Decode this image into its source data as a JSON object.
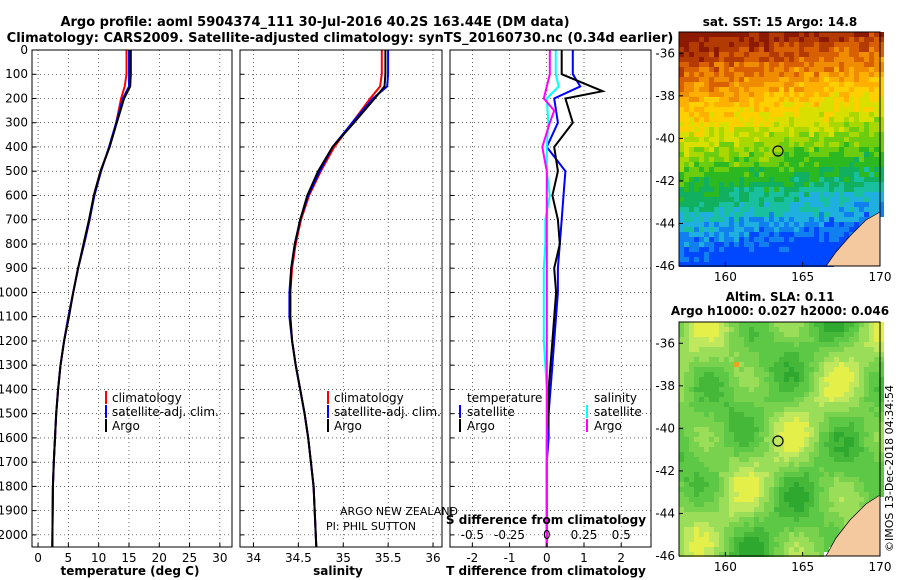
{
  "header": {
    "title_line1": "Argo profile: aoml 5904374_111 30-Jul-2016 40.2S 163.44E (DM data)",
    "title_line2": "Climatology: CARS2009. Satellite-adjusted climatology: synTS_20160730.nc (0.34d earlier)"
  },
  "colors": {
    "climatology": "#ff0000",
    "satellite": "#0000ff",
    "argo": "#000000",
    "sat_salinity": "#00ffff",
    "argo_salinity": "#ff00ff"
  },
  "depth_ticks": [
    0,
    100,
    200,
    300,
    400,
    500,
    600,
    700,
    800,
    900,
    1000,
    1100,
    1200,
    1300,
    1400,
    1500,
    1600,
    1700,
    1800,
    1900,
    2000
  ],
  "panels": {
    "temperature": {
      "xlabel": "temperature (deg C)",
      "xticks": [
        "0",
        "5",
        "10",
        "15",
        "20",
        "25",
        "30"
      ],
      "legend": [
        "climatology",
        "satellite-adj. clim.",
        "Argo"
      ]
    },
    "salinity": {
      "xlabel": "salinity",
      "xticks": [
        "34",
        "34.5",
        "35",
        "35.5",
        "36"
      ],
      "legend": [
        "climatology",
        "satellite-adj. clim.",
        "Argo"
      ],
      "note1": "ARGO NEW ZEALAND",
      "note2": "PI: PHIL SUTTON"
    },
    "difference": {
      "xlabel": "T difference from climatology",
      "xticks": [
        "-2",
        "-1",
        "0",
        "1",
        "2"
      ],
      "s_title": "S difference from climatology",
      "s_ticks": [
        "-0.5",
        "-0.25",
        "0",
        "0.25",
        "0.5"
      ],
      "legend_temperature_title": "temperature",
      "legend_salinity_title": "salinity",
      "legend_satellite": "satellite",
      "legend_argo": "Argo"
    }
  },
  "maps": {
    "sst": {
      "title": "sat. SST: 15 Argo: 14.8",
      "lat_ticks": [
        "-36",
        "-38",
        "-40",
        "-42",
        "-44",
        "-46"
      ],
      "lon_ticks": [
        "160",
        "165",
        "170"
      ]
    },
    "sla": {
      "title1": "Altim. SLA: 0.11",
      "title2": "Argo h1000: 0.027 h2000: 0.046",
      "lat_ticks": [
        "-36",
        "-38",
        "-40",
        "-42",
        "-44",
        "-46"
      ],
      "lon_ticks": [
        "160",
        "165",
        "170"
      ]
    },
    "credit": "©IMOS 13-Dec-2018 04:34:54"
  },
  "chart_data": [
    {
      "type": "line",
      "xlabel": "temperature (deg C)",
      "ylabel": "",
      "xlim": [
        -1,
        32
      ],
      "ylim": [
        2050,
        0
      ],
      "series": [
        {
          "name": "climatology",
          "x": [
            14.6,
            14.6,
            14.3,
            13.7,
            12.9,
            11.8,
            10.3,
            9.2,
            8.5,
            7.6,
            6.6,
            5.8,
            5.0,
            4.3,
            3.7,
            3.3,
            3.0,
            2.8,
            2.6,
            2.45,
            2.35
          ],
          "y": [
            0,
            100,
            150,
            200,
            300,
            400,
            500,
            600,
            700,
            800,
            900,
            1000,
            1100,
            1200,
            1300,
            1400,
            1500,
            1600,
            1700,
            1800,
            2050
          ]
        },
        {
          "name": "satellite-adj. clim.",
          "x": [
            15.0,
            15.0,
            15.0,
            14.0,
            12.9,
            11.7,
            10.4,
            9.3,
            8.5,
            7.6,
            6.6,
            5.8,
            5.0,
            4.3,
            3.7,
            3.3,
            3.0,
            2.8,
            2.6,
            2.45,
            2.35
          ],
          "y": [
            0,
            100,
            150,
            200,
            300,
            400,
            500,
            600,
            700,
            800,
            900,
            1000,
            1100,
            1200,
            1300,
            1400,
            1500,
            1600,
            1700,
            1800,
            2050
          ]
        },
        {
          "name": "Argo",
          "x": [
            15.3,
            15.3,
            15.2,
            14.2,
            13.0,
            11.8,
            10.3,
            9.2,
            8.4,
            7.5,
            6.6,
            5.8,
            5.1,
            4.3,
            3.7,
            3.3,
            3.0,
            2.8,
            2.6,
            2.45,
            2.35
          ],
          "y": [
            0,
            100,
            150,
            200,
            300,
            400,
            500,
            600,
            700,
            800,
            900,
            1000,
            1100,
            1200,
            1300,
            1400,
            1500,
            1600,
            1700,
            1800,
            2050
          ]
        }
      ]
    },
    {
      "type": "line",
      "xlabel": "salinity",
      "ylabel": "",
      "xlim": [
        33.85,
        36.1
      ],
      "ylim": [
        2050,
        0
      ],
      "series": [
        {
          "name": "climatology",
          "x": [
            35.43,
            35.43,
            35.41,
            35.3,
            35.1,
            34.9,
            34.75,
            34.62,
            34.53,
            34.47,
            34.43,
            34.41,
            34.41,
            34.43,
            34.47,
            34.52,
            34.57,
            34.61,
            34.64,
            34.67,
            34.7
          ],
          "y": [
            0,
            100,
            150,
            200,
            300,
            400,
            500,
            600,
            700,
            800,
            900,
            1000,
            1100,
            1200,
            1300,
            1400,
            1500,
            1600,
            1700,
            1800,
            2050
          ]
        },
        {
          "name": "satellite-adj. clim.",
          "x": [
            35.5,
            35.5,
            35.49,
            35.33,
            35.1,
            34.88,
            34.74,
            34.61,
            34.52,
            34.46,
            34.42,
            34.4,
            34.4,
            34.43,
            34.47,
            34.52,
            34.57,
            34.61,
            34.64,
            34.67,
            34.7
          ],
          "y": [
            0,
            100,
            150,
            200,
            300,
            400,
            500,
            600,
            700,
            800,
            900,
            1000,
            1100,
            1200,
            1300,
            1400,
            1500,
            1600,
            1700,
            1800,
            2050
          ]
        },
        {
          "name": "Argo",
          "x": [
            35.47,
            35.47,
            35.46,
            35.35,
            35.12,
            34.88,
            34.72,
            34.6,
            34.52,
            34.46,
            34.42,
            34.41,
            34.41,
            34.43,
            34.47,
            34.52,
            34.57,
            34.61,
            34.64,
            34.67,
            34.7
          ],
          "y": [
            0,
            100,
            150,
            200,
            300,
            400,
            500,
            600,
            700,
            800,
            900,
            1000,
            1100,
            1200,
            1300,
            1400,
            1500,
            1600,
            1700,
            1800,
            2050
          ]
        }
      ]
    },
    {
      "type": "line",
      "xlabel": "T difference from climatology",
      "ylabel": "",
      "xlim": [
        -2.6,
        2.8
      ],
      "ylim": [
        2050,
        0
      ],
      "series": [
        {
          "name": "temperature satellite",
          "x": [
            0.7,
            0.7,
            0.9,
            0.2,
            0.3,
            0.0,
            0.5,
            0.45,
            0.4,
            0.35,
            0.3,
            0.3,
            0.2,
            0.15,
            0.1,
            0.05,
            0.05,
            0.0,
            0.0,
            0.0
          ],
          "y": [
            0,
            100,
            150,
            200,
            300,
            400,
            500,
            600,
            700,
            800,
            900,
            1000,
            1200,
            1300,
            1400,
            1500,
            1600,
            1700,
            1800,
            2050
          ]
        },
        {
          "name": "temperature Argo",
          "x": [
            0.4,
            0.4,
            1.5,
            0.5,
            0.7,
            0.2,
            0.3,
            0.15,
            0.3,
            0.35,
            0.2,
            0.25,
            0.15,
            0.1,
            0.05,
            0.05,
            0.0,
            0.0,
            0.0,
            0.0
          ],
          "y": [
            0,
            100,
            170,
            200,
            300,
            400,
            500,
            600,
            700,
            800,
            900,
            1000,
            1200,
            1300,
            1400,
            1500,
            1600,
            1700,
            1800,
            2050
          ]
        },
        {
          "name": "salinity satellite",
          "x": [
            0.06,
            0.06,
            0.08,
            0.0,
            0.01,
            0.0,
            0.0,
            0.02,
            -0.01,
            -0.01,
            -0.02,
            -0.02,
            -0.02,
            -0.01,
            0.0,
            0.0,
            0.0,
            0.0,
            0.0
          ],
          "y": [
            0,
            100,
            150,
            200,
            300,
            400,
            500,
            600,
            700,
            800,
            900,
            1000,
            1200,
            1300,
            1400,
            1500,
            1600,
            1700,
            2050
          ]
        },
        {
          "name": "salinity Argo",
          "x": [
            0.02,
            0.02,
            -0.02,
            0.05,
            0.02,
            -0.03,
            0.0,
            0.0,
            0.0,
            0.0,
            0.0,
            0.0,
            0.0,
            0.0,
            0.0,
            0.0
          ],
          "y": [
            0,
            100,
            200,
            250,
            300,
            400,
            500,
            600,
            700,
            800,
            900,
            1000,
            1200,
            1400,
            1600,
            2050
          ]
        }
      ]
    }
  ]
}
